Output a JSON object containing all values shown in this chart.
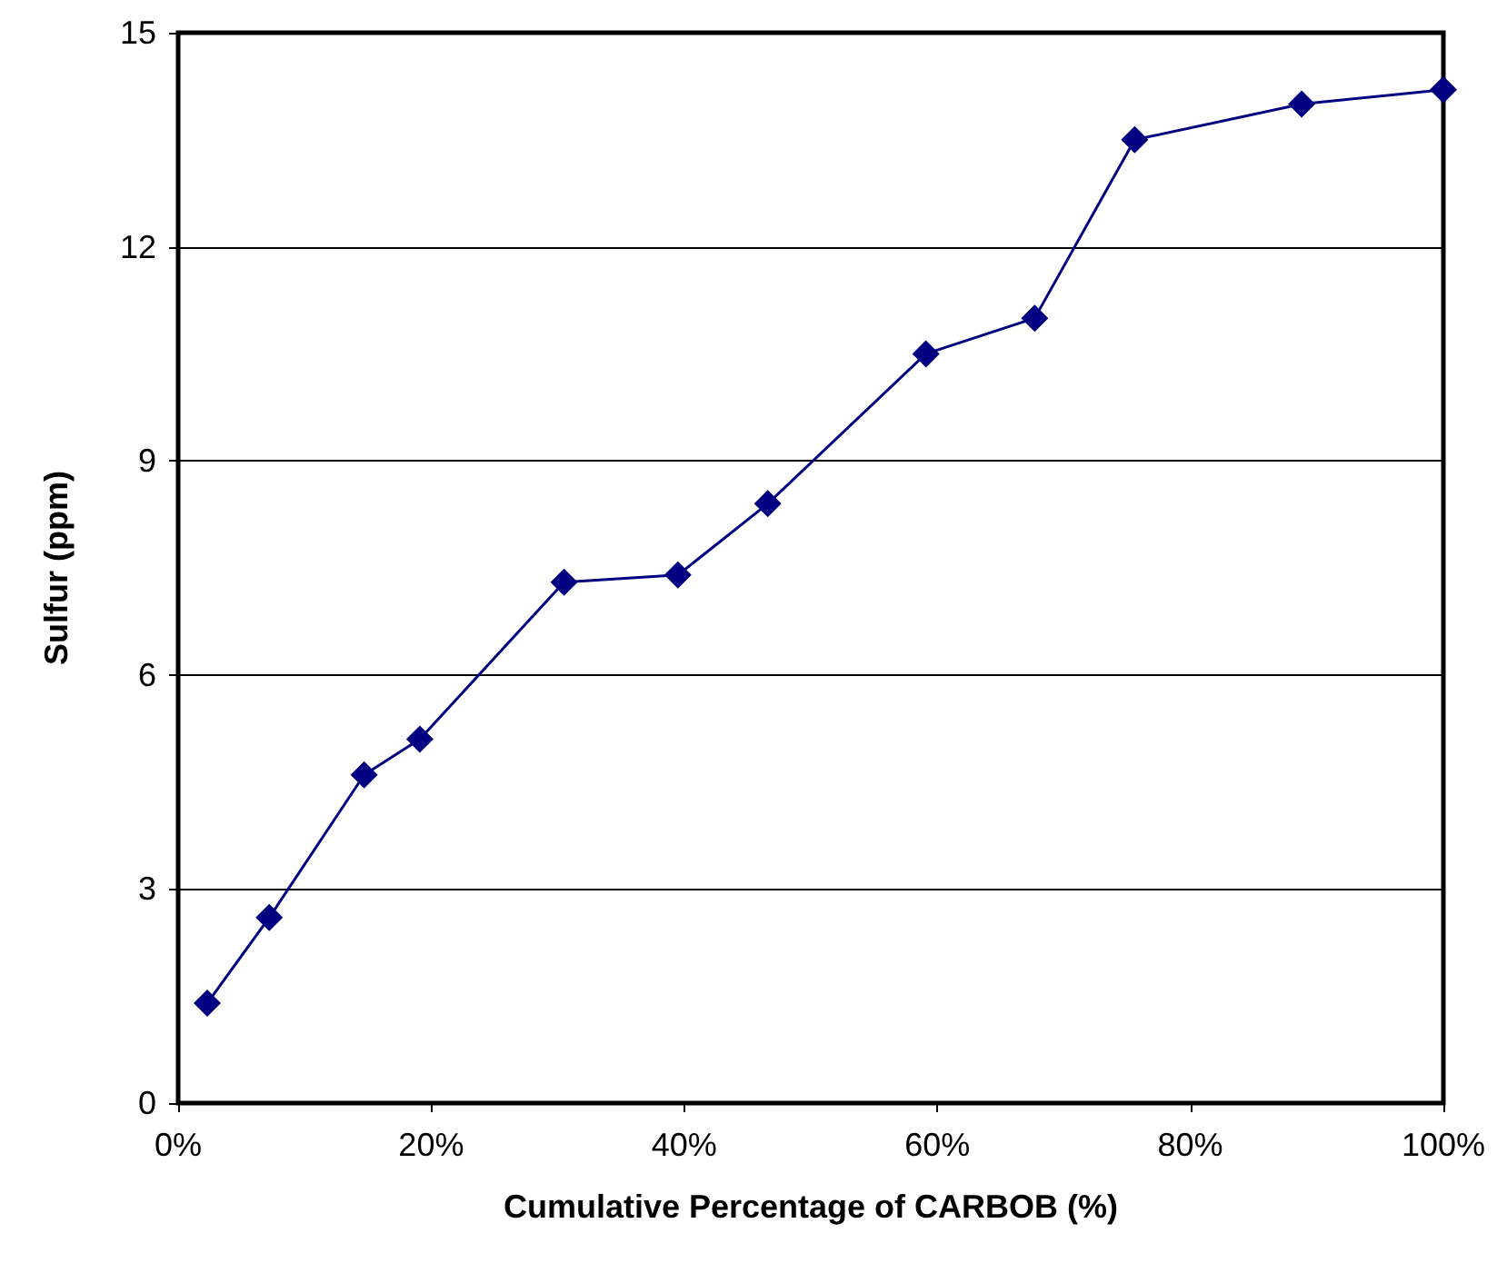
{
  "chart_data": {
    "type": "line",
    "xlabel": "Cumulative Percentage of CARBOB (%)",
    "ylabel": "Sulfur (ppm)",
    "x": [
      2.3,
      7.2,
      14.7,
      19.1,
      30.5,
      39.5,
      46.6,
      59.1,
      67.7,
      75.6,
      88.8,
      100
    ],
    "series": [
      {
        "color": "#000080",
        "values": [
          1.4,
          2.6,
          4.6,
          5.1,
          7.3,
          7.4,
          8.4,
          10.5,
          11.0,
          13.5,
          14.0,
          14.2
        ]
      }
    ],
    "xlim": [
      0,
      100
    ],
    "xticks": [
      {
        "value": 0,
        "label": "0%"
      },
      {
        "value": 20,
        "label": "20%"
      },
      {
        "value": 40,
        "label": "40%"
      },
      {
        "value": 60,
        "label": "60%"
      },
      {
        "value": 80,
        "label": "80%"
      },
      {
        "value": 100,
        "label": "100%"
      }
    ],
    "ylim": [
      0,
      15
    ],
    "yticks": [
      0,
      3,
      6,
      9,
      12,
      15
    ],
    "grid": "y",
    "marker": "diamond",
    "line_style": "solid"
  }
}
